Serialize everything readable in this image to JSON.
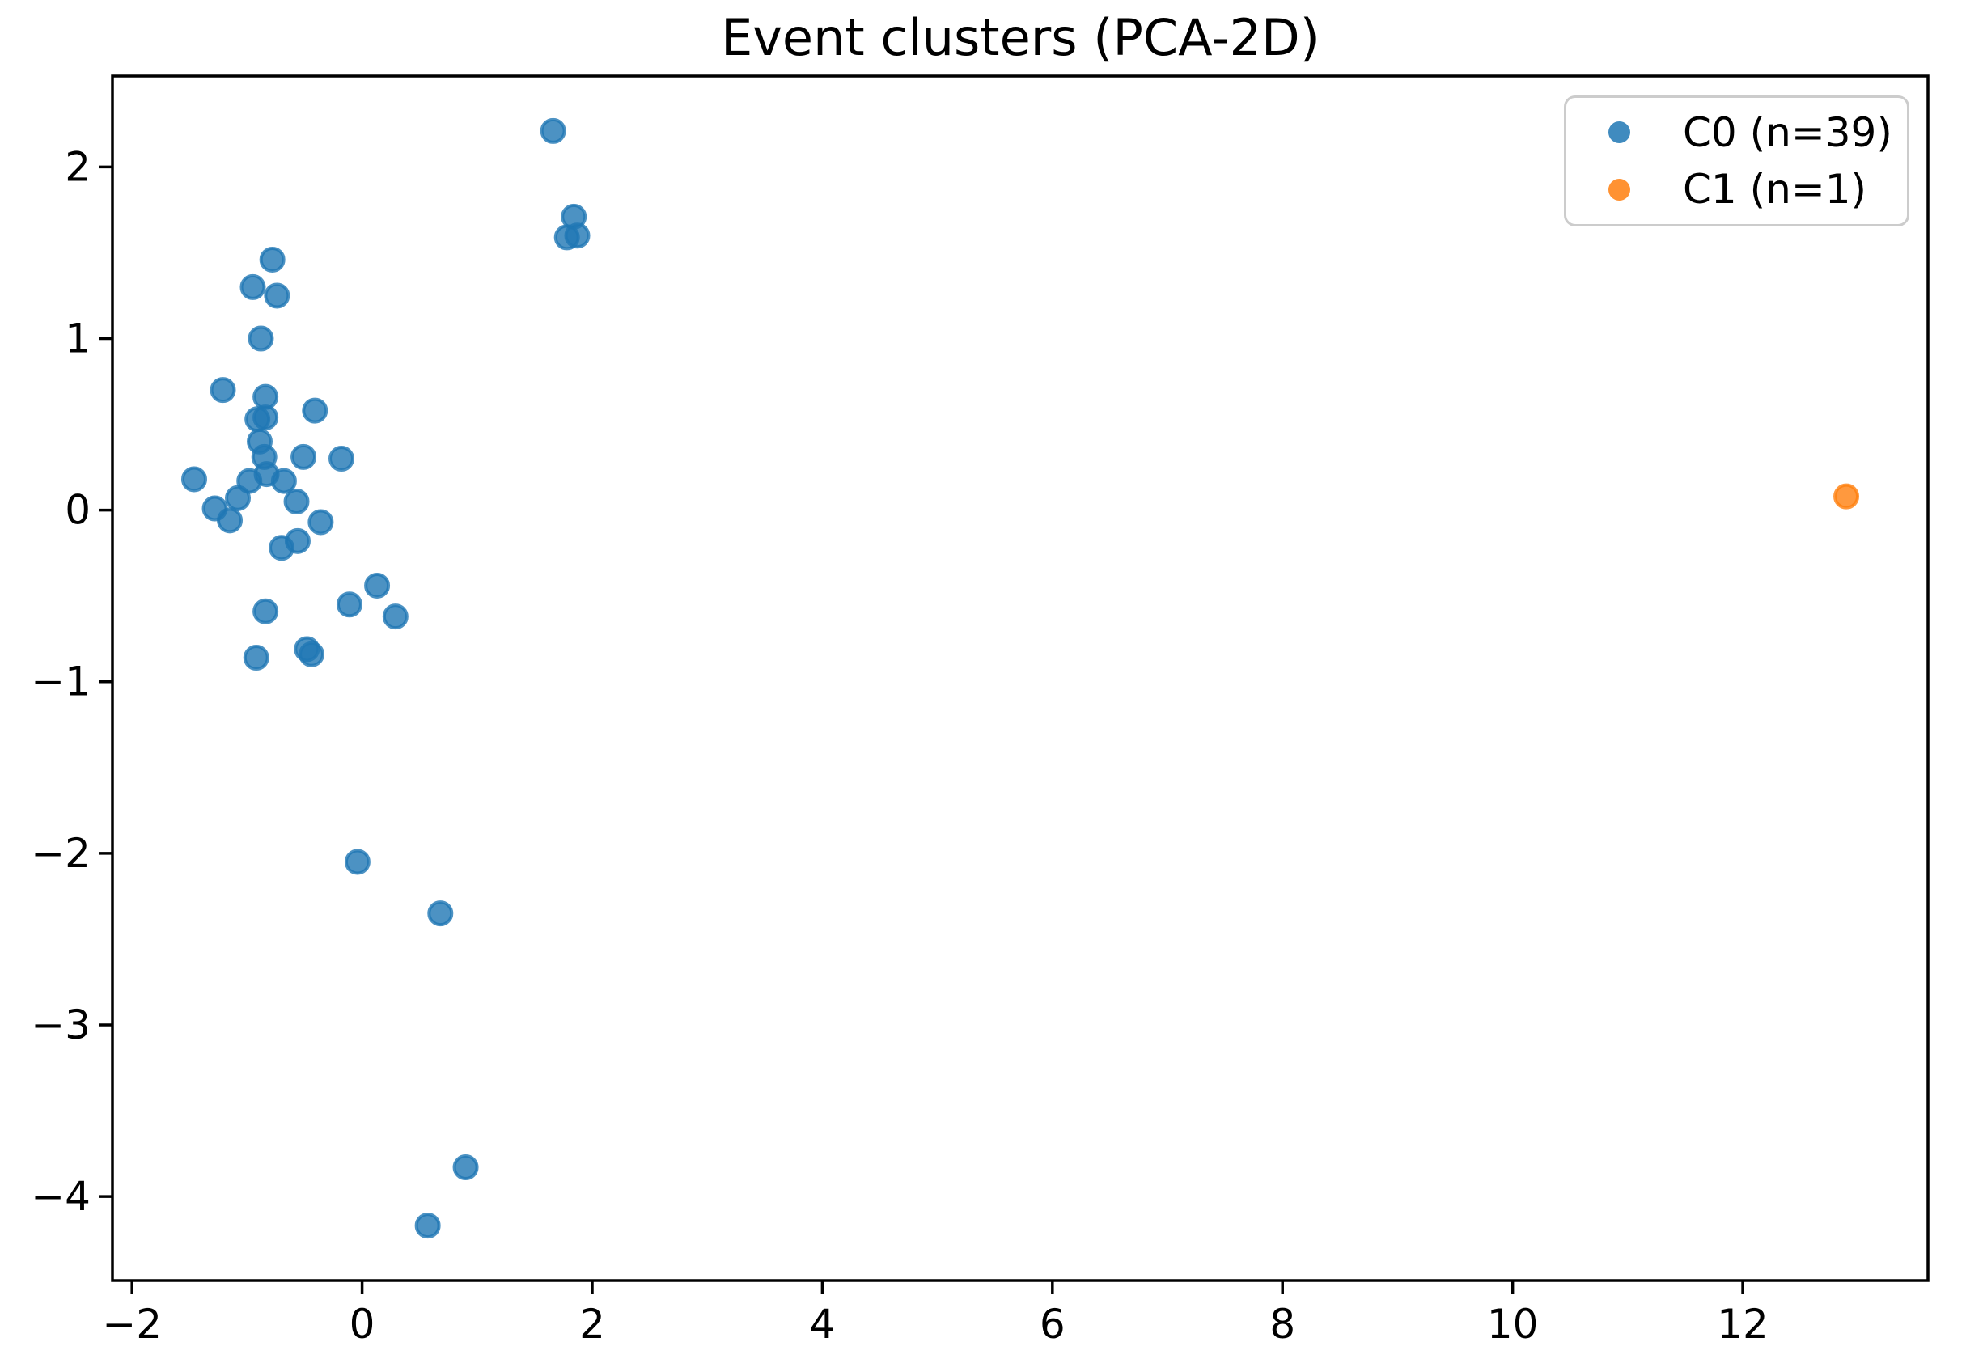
{
  "chart_data": {
    "type": "scatter",
    "title": "Event clusters (PCA-2D)",
    "xlabel": "",
    "ylabel": "",
    "xlim": [
      -2.17,
      13.61
    ],
    "ylim": [
      -4.49,
      2.53
    ],
    "grid": false,
    "legend_position": "upper right",
    "x_tick_values": [
      -2,
      0,
      2,
      4,
      6,
      8,
      10,
      12
    ],
    "x_tick_labels": [
      "−2",
      "0",
      "2",
      "4",
      "6",
      "8",
      "10",
      "12"
    ],
    "y_tick_values": [
      2,
      1,
      0,
      -1,
      -2,
      -3,
      -4
    ],
    "y_tick_labels": [
      "2",
      "1",
      "0",
      "−1",
      "−2",
      "−3",
      "−4"
    ],
    "marker_alpha": 0.8,
    "series": [
      {
        "name": "C0 (n=39)",
        "color": "#1f77b4",
        "points": [
          [
            1.66,
            2.21
          ],
          [
            1.84,
            1.71
          ],
          [
            1.78,
            1.59
          ],
          [
            1.87,
            1.6
          ],
          [
            -0.78,
            1.46
          ],
          [
            -0.95,
            1.3
          ],
          [
            -0.74,
            1.25
          ],
          [
            -0.88,
            1.0
          ],
          [
            -1.21,
            0.7
          ],
          [
            -0.84,
            0.66
          ],
          [
            -0.41,
            0.58
          ],
          [
            -0.91,
            0.53
          ],
          [
            -0.84,
            0.54
          ],
          [
            -0.89,
            0.4
          ],
          [
            -0.85,
            0.31
          ],
          [
            -0.51,
            0.31
          ],
          [
            -0.18,
            0.3
          ],
          [
            -0.83,
            0.21
          ],
          [
            -1.46,
            0.18
          ],
          [
            -0.98,
            0.17
          ],
          [
            -0.68,
            0.17
          ],
          [
            -1.08,
            0.07
          ],
          [
            -1.28,
            0.01
          ],
          [
            -1.15,
            -0.06
          ],
          [
            -0.57,
            0.05
          ],
          [
            -0.36,
            -0.07
          ],
          [
            -0.7,
            -0.22
          ],
          [
            -0.56,
            -0.18
          ],
          [
            0.13,
            -0.44
          ],
          [
            -0.11,
            -0.55
          ],
          [
            0.29,
            -0.62
          ],
          [
            -0.84,
            -0.59
          ],
          [
            -0.92,
            -0.86
          ],
          [
            -0.48,
            -0.81
          ],
          [
            -0.44,
            -0.84
          ],
          [
            -0.04,
            -2.05
          ],
          [
            0.68,
            -2.35
          ],
          [
            0.9,
            -3.83
          ],
          [
            0.57,
            -4.17
          ]
        ]
      },
      {
        "name": "C1 (n=1)",
        "color": "#ff7f0e",
        "points": [
          [
            12.9,
            0.08
          ]
        ]
      }
    ]
  }
}
